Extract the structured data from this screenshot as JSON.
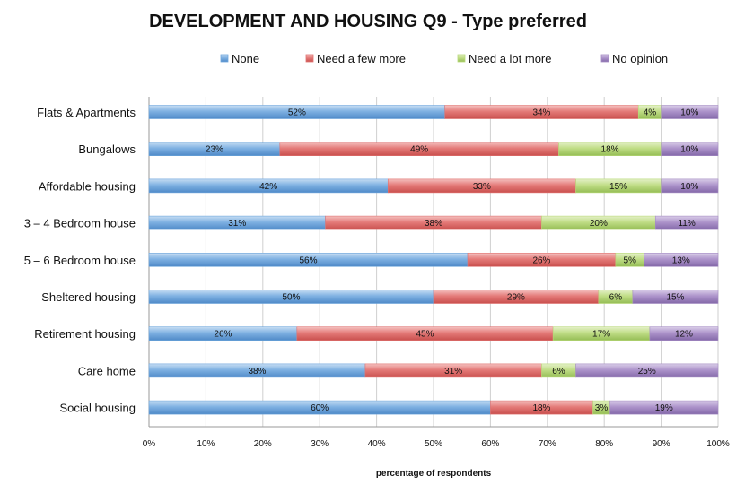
{
  "chart_data": {
    "type": "bar",
    "orientation": "horizontal",
    "stacked": "percent",
    "title": "DEVELOPMENT AND HOUSING Q9 - Type preferred",
    "xlabel": "percentage of respondents",
    "ylabel": "",
    "xlim": [
      0,
      100
    ],
    "x_ticks": [
      "0%",
      "10%",
      "20%",
      "30%",
      "40%",
      "50%",
      "60%",
      "70%",
      "80%",
      "90%",
      "100%"
    ],
    "grid": true,
    "legend_position": "top",
    "categories": [
      "Flats & Apartments",
      "Bungalows",
      "Affordable housing",
      "3 – 4 Bedroom house",
      "5 – 6 Bedroom house",
      "Sheltered housing",
      "Retirement housing",
      "Care home",
      "Social housing"
    ],
    "series": [
      {
        "name": "None",
        "color": "#6ea6dc",
        "values": [
          52,
          23,
          42,
          31,
          56,
          50,
          26,
          38,
          60
        ]
      },
      {
        "name": "Need a  few more",
        "color": "#e07371",
        "values": [
          34,
          49,
          33,
          38,
          26,
          29,
          45,
          31,
          18
        ]
      },
      {
        "name": "Need a lot more",
        "color": "#b9d97a",
        "values": [
          4,
          18,
          15,
          20,
          5,
          6,
          17,
          6,
          3
        ]
      },
      {
        "name": "No opinion",
        "color": "#a58cc4",
        "values": [
          10,
          10,
          10,
          11,
          13,
          15,
          12,
          25,
          19
        ]
      }
    ]
  }
}
